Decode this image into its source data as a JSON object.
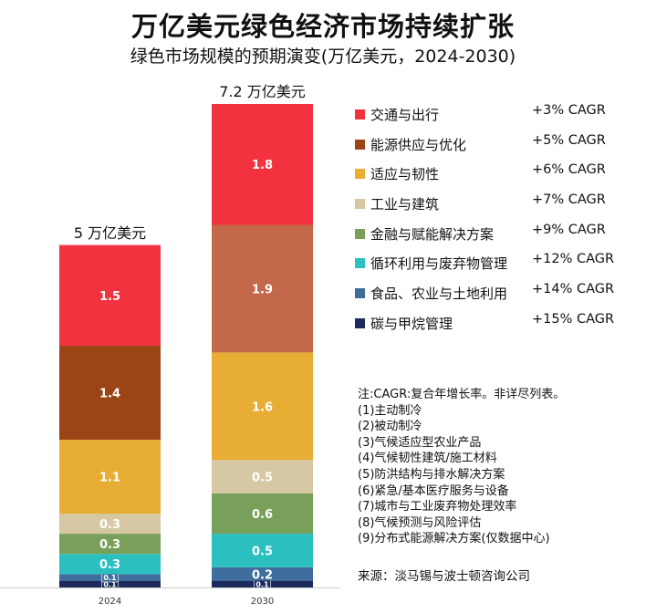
{
  "header": {
    "title": "万亿美元绿色经济市场持续扩张",
    "subtitle": "绿色市场规模的预期演变(万亿美元，2024-2030)"
  },
  "chart_data": {
    "type": "bar",
    "stacked": true,
    "categories": [
      "2024",
      "2030"
    ],
    "totals_labels": [
      "5 万亿美元",
      "7.2 万亿美元"
    ],
    "totals": [
      5,
      7.2
    ],
    "ylim": [
      0,
      7.2
    ],
    "grid": false,
    "legend_position": "right",
    "series": [
      {
        "name": "碳与甲烷管理",
        "cagr": "+15% CAGR",
        "color": "#1b2b5e",
        "values": [
          0.1,
          0.1
        ],
        "labels": [
          "0.1",
          "0.1"
        ]
      },
      {
        "name": "食品、农业与土地利用",
        "cagr": "+14% CAGR",
        "color": "#3f6e9e",
        "values": [
          0.1,
          0.2
        ],
        "labels": [
          "0.1",
          "0.2"
        ]
      },
      {
        "name": "循环利用与废弃物管理",
        "cagr": "+12% CAGR",
        "color": "#2bbfbf",
        "values": [
          0.3,
          0.5
        ],
        "labels": [
          "0.3",
          "0.5"
        ]
      },
      {
        "name": "金融与赋能解决方案",
        "cagr": "+9% CAGR",
        "color": "#78a05a",
        "values": [
          0.3,
          0.6
        ],
        "labels": [
          "0.3",
          "0.6"
        ]
      },
      {
        "name": "工业与建筑",
        "cagr": "+7% CAGR",
        "color": "#d5c8a2",
        "values": [
          0.3,
          0.5
        ],
        "labels": [
          "0.3",
          "0.5"
        ]
      },
      {
        "name": "适应与韧性",
        "cagr": "+6% CAGR",
        "color": "#e8ad35",
        "values": [
          1.1,
          1.6
        ],
        "labels": [
          "1.1",
          "1.6"
        ]
      },
      {
        "name": "能源供应与优化",
        "cagr": "+5% CAGR",
        "color": "#9b4416",
        "values": [
          1.4,
          1.9
        ],
        "labels": [
          "1.4",
          "1.9"
        ],
        "colors": [
          "#9b4416",
          "#c4684a"
        ]
      },
      {
        "name": "交通与出行",
        "cagr": "+3% CAGR",
        "color": "#f2333f",
        "values": [
          1.5,
          1.8
        ],
        "labels": [
          "1.5",
          "1.8"
        ]
      }
    ]
  },
  "legend_order": [
    7,
    6,
    5,
    4,
    3,
    2,
    1,
    0
  ],
  "notes": [
    "注:CAGR:复合年增长率。非详尽列表。",
    "(1)主动制冷",
    "(2)被动制冷",
    "(3)气候适应型农业产品",
    "(4)气候韧性建筑/施工材料",
    "(5)防洪结构与排水解决方案",
    "(6)紧急/基本医疗服务与设备",
    "(7)城市与工业废弃物处理效率",
    "(8)气候预测与风险评估",
    "(9)分布式能源解决方案(仅数据中心)"
  ],
  "source": "来源：淡马锡与波士顿咨询公司"
}
